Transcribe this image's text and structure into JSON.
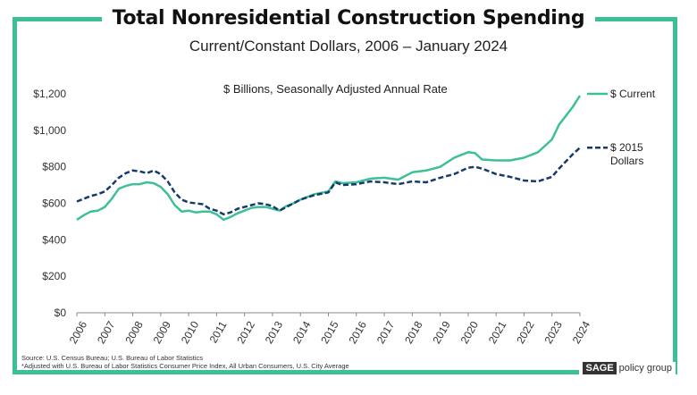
{
  "chart_data": {
    "type": "line",
    "title": "Total Nonresidential Construction Spending",
    "subtitle": "Current/Constant Dollars, 2006  –  January 2024",
    "annotation": "$ Billions, Seasonally Adjusted Annual Rate",
    "x_ticks": [
      "2006",
      "2007",
      "2008",
      "2009",
      "2010",
      "2011",
      "2012",
      "2013",
      "2014",
      "2015",
      "2016",
      "2017",
      "2018",
      "2019",
      "2020",
      "2021",
      "2022",
      "2023",
      "2024"
    ],
    "y_ticks": [
      "$0",
      "$200",
      "$400",
      "$600",
      "$800",
      "$1,000",
      "$1,200"
    ],
    "ylim": [
      0,
      1200
    ],
    "xlim": [
      2006,
      2024
    ],
    "legend_placement": "right",
    "series": [
      {
        "name": "$ Current",
        "color": "#3dbf98",
        "style": "solid",
        "x": [
          2006,
          2006.25,
          2006.5,
          2006.75,
          2007,
          2007.25,
          2007.5,
          2007.75,
          2008,
          2008.25,
          2008.5,
          2008.75,
          2009,
          2009.25,
          2009.5,
          2009.75,
          2010,
          2010.25,
          2010.5,
          2010.75,
          2011,
          2011.25,
          2011.5,
          2011.75,
          2012,
          2012.25,
          2012.5,
          2012.75,
          2013,
          2013.25,
          2013.5,
          2013.75,
          2014,
          2014.5,
          2015,
          2015.25,
          2015.5,
          2016,
          2016.5,
          2017,
          2017.5,
          2018,
          2018.5,
          2019,
          2019.5,
          2020,
          2020.25,
          2020.5,
          2021,
          2021.5,
          2022,
          2022.5,
          2023,
          2023.25,
          2023.5,
          2023.75,
          2024
        ],
        "values": [
          510,
          535,
          555,
          560,
          580,
          625,
          680,
          695,
          705,
          705,
          715,
          710,
          690,
          650,
          590,
          555,
          560,
          550,
          555,
          555,
          540,
          510,
          525,
          545,
          560,
          575,
          580,
          580,
          570,
          560,
          585,
          600,
          620,
          650,
          665,
          720,
          710,
          715,
          735,
          740,
          730,
          770,
          780,
          800,
          850,
          880,
          875,
          840,
          835,
          835,
          850,
          880,
          950,
          1030,
          1080,
          1130,
          1190
        ]
      },
      {
        "name": "$ 2015 Dollars",
        "color": "#173a6b",
        "style": "dashed",
        "x": [
          2006,
          2006.25,
          2006.5,
          2006.75,
          2007,
          2007.25,
          2007.5,
          2007.75,
          2008,
          2008.25,
          2008.5,
          2008.75,
          2009,
          2009.25,
          2009.5,
          2009.75,
          2010,
          2010.25,
          2010.5,
          2010.75,
          2011,
          2011.25,
          2011.5,
          2011.75,
          2012,
          2012.25,
          2012.5,
          2012.75,
          2013,
          2013.25,
          2013.5,
          2013.75,
          2014,
          2014.5,
          2015,
          2015.25,
          2015.5,
          2016,
          2016.5,
          2017,
          2017.5,
          2018,
          2018.5,
          2019,
          2019.5,
          2020,
          2020.25,
          2020.5,
          2021,
          2021.5,
          2022,
          2022.5,
          2023,
          2023.25,
          2023.5,
          2023.75,
          2024
        ],
        "values": [
          610,
          625,
          640,
          650,
          665,
          700,
          740,
          765,
          780,
          775,
          765,
          780,
          760,
          720,
          660,
          620,
          605,
          600,
          595,
          570,
          560,
          540,
          550,
          570,
          580,
          590,
          600,
          595,
          585,
          560,
          580,
          600,
          620,
          645,
          660,
          715,
          700,
          705,
          720,
          715,
          705,
          720,
          715,
          740,
          760,
          795,
          800,
          790,
          760,
          745,
          725,
          720,
          745,
          790,
          830,
          870,
          905
        ]
      }
    ]
  },
  "source_text": "Source: U.S. Census Bureau; U.S. Bureau of Labor Statistics",
  "footnote_text": "*Adjusted with U.S. Bureau of Labor Statistics Consumer Price Index, All Urban Consumers, U.S. City Average",
  "logo": {
    "left": "SAGE",
    "right": "policy group"
  },
  "colors": {
    "frame": "#3dbf98",
    "current": "#3dbf98",
    "constant": "#173a6b"
  }
}
